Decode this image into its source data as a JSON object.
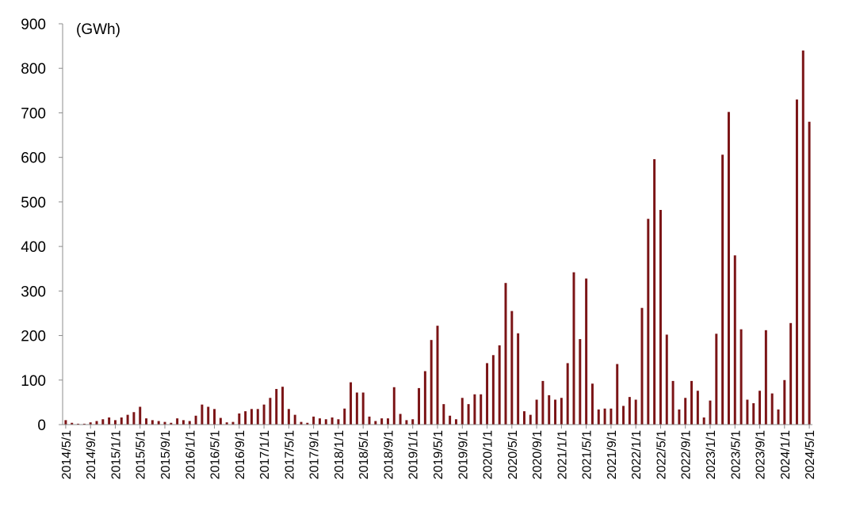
{
  "chart_data": {
    "type": "bar",
    "unit_label": "(GWh)",
    "ylim": [
      0,
      900
    ],
    "yticks": [
      0,
      100,
      200,
      300,
      400,
      500,
      600,
      700,
      800,
      900
    ],
    "grid": false,
    "bar_color": "#7b1416",
    "axis_color": "#8c8c8c",
    "tick_labels": [
      "2014/5/1",
      "2014/9/1",
      "2015/1/1",
      "2015/5/1",
      "2015/9/1",
      "2016/1/1",
      "2016/5/1",
      "2016/9/1",
      "2017/1/1",
      "2017/5/1",
      "2017/9/1",
      "2018/1/1",
      "2018/5/1",
      "2018/9/1",
      "2019/1/1",
      "2019/5/1",
      "2019/9/1",
      "2020/1/1",
      "2020/5/1",
      "2020/9/1",
      "2021/1/1",
      "2021/5/1",
      "2021/9/1",
      "2022/1/1",
      "2022/5/1",
      "2022/9/1",
      "2023/1/1",
      "2023/5/1",
      "2023/9/1",
      "2024/1/1",
      "2024/5/1"
    ],
    "categories": [
      "2014/5",
      "2014/6",
      "2014/7",
      "2014/8",
      "2014/9",
      "2014/10",
      "2014/11",
      "2014/12",
      "2015/1",
      "2015/2",
      "2015/3",
      "2015/4",
      "2015/5",
      "2015/6",
      "2015/7",
      "2015/8",
      "2015/9",
      "2015/10",
      "2015/11",
      "2015/12",
      "2016/1",
      "2016/2",
      "2016/3",
      "2016/4",
      "2016/5",
      "2016/6",
      "2016/7",
      "2016/8",
      "2016/9",
      "2016/10",
      "2016/11",
      "2016/12",
      "2017/1",
      "2017/2",
      "2017/3",
      "2017/4",
      "2017/5",
      "2017/6",
      "2017/7",
      "2017/8",
      "2017/9",
      "2017/10",
      "2017/11",
      "2017/12",
      "2018/1",
      "2018/2",
      "2018/3",
      "2018/4",
      "2018/5",
      "2018/6",
      "2018/7",
      "2018/8",
      "2018/9",
      "2018/10",
      "2018/11",
      "2018/12",
      "2019/1",
      "2019/2",
      "2019/3",
      "2019/4",
      "2019/5",
      "2019/6",
      "2019/7",
      "2019/8",
      "2019/9",
      "2019/10",
      "2019/11",
      "2019/12",
      "2020/1",
      "2020/2",
      "2020/3",
      "2020/4",
      "2020/5",
      "2020/6",
      "2020/7",
      "2020/8",
      "2020/9",
      "2020/10",
      "2020/11",
      "2020/12",
      "2021/1",
      "2021/2",
      "2021/3",
      "2021/4",
      "2021/5",
      "2021/6",
      "2021/7",
      "2021/8",
      "2021/9",
      "2021/10",
      "2021/11",
      "2021/12",
      "2022/1",
      "2022/2",
      "2022/3",
      "2022/4",
      "2022/5",
      "2022/6",
      "2022/7",
      "2022/8",
      "2022/9",
      "2022/10",
      "2022/11",
      "2022/12",
      "2023/1",
      "2023/2",
      "2023/3",
      "2023/4",
      "2023/5",
      "2023/6",
      "2023/7",
      "2023/8",
      "2023/9",
      "2023/10",
      "2023/11",
      "2023/12",
      "2024/1",
      "2024/2",
      "2024/3",
      "2024/4",
      "2024/5"
    ],
    "values": [
      10,
      4,
      2,
      2,
      5,
      8,
      12,
      16,
      10,
      16,
      22,
      28,
      40,
      14,
      10,
      8,
      6,
      4,
      14,
      10,
      8,
      20,
      45,
      40,
      35,
      15,
      5,
      6,
      25,
      30,
      35,
      35,
      45,
      60,
      80,
      85,
      35,
      22,
      6,
      4,
      18,
      14,
      12,
      16,
      12,
      36,
      95,
      72,
      72,
      18,
      8,
      14,
      14,
      84,
      24,
      10,
      12,
      82,
      120,
      190,
      222,
      46,
      20,
      12,
      60,
      46,
      68,
      68,
      138,
      156,
      178,
      318,
      255,
      205,
      30,
      22,
      56,
      98,
      66,
      56,
      60,
      138,
      342,
      192,
      328,
      92,
      34,
      36,
      36,
      136,
      42,
      62,
      56,
      262,
      462,
      596,
      482,
      202,
      98,
      34,
      60,
      98,
      76,
      16,
      54,
      204,
      606,
      702,
      380,
      214,
      56,
      48,
      76,
      212,
      70,
      34,
      100,
      228,
      730,
      840,
      680
    ]
  }
}
